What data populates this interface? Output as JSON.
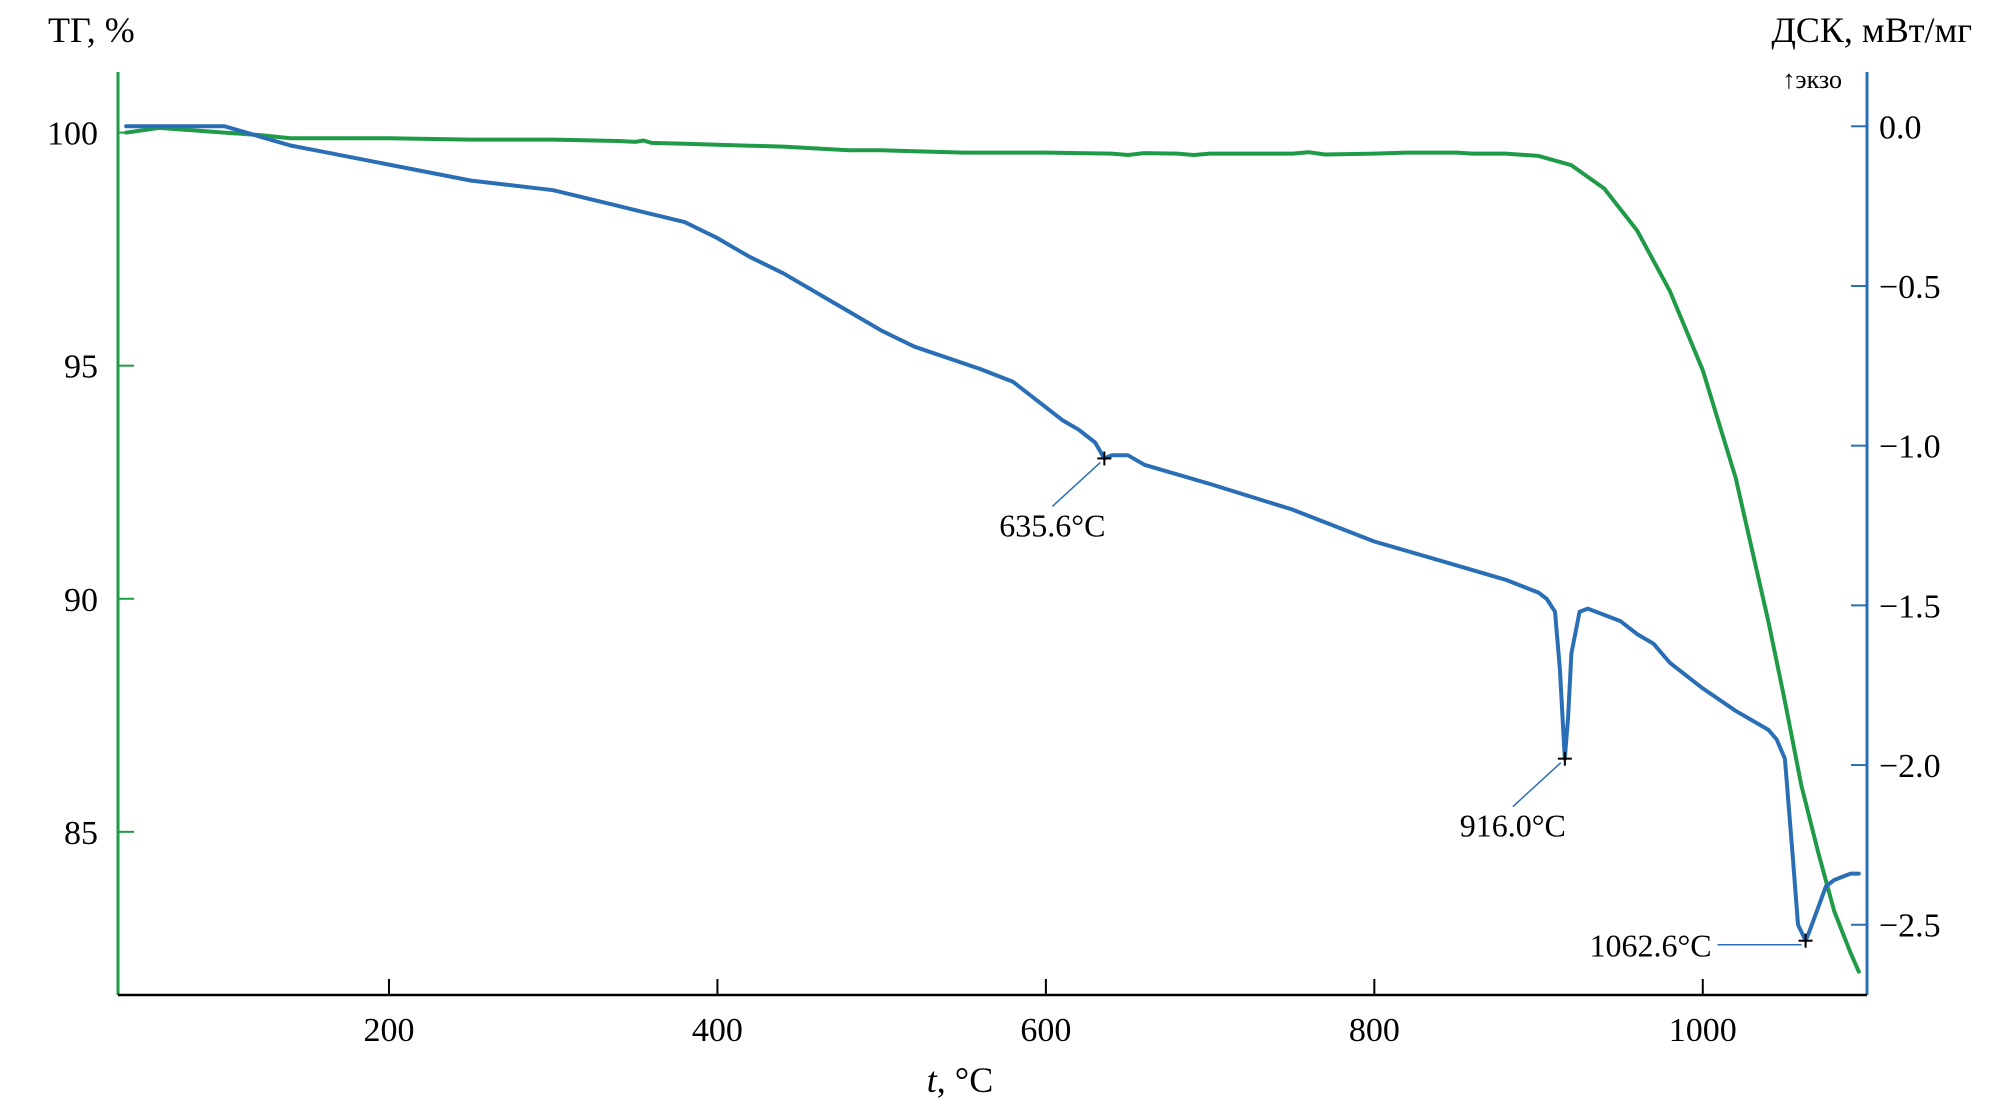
{
  "chart_data": {
    "type": "line",
    "xlabel_italic": "t",
    "xlabel_rest": ", °C",
    "ylabel_left": "ТГ, %",
    "ylabel_right": "ДСК, мВт/мг",
    "right_axis_note": "↑экзо",
    "xlim": [
      35,
      1100
    ],
    "ylim_left": [
      81.5,
      101.3
    ],
    "ylim_right": [
      -2.72,
      0.17
    ],
    "x_ticks": [
      200,
      400,
      600,
      800,
      1000
    ],
    "x_tick_labels": [
      "200",
      "400",
      "600",
      "800",
      "1000"
    ],
    "y_left_ticks": [
      100,
      95,
      90,
      85
    ],
    "y_left_tick_labels": [
      "100",
      "95",
      "90",
      "85"
    ],
    "y_right_ticks": [
      0.0,
      -0.5,
      -1.0,
      -1.5,
      -2.0,
      -2.5
    ],
    "y_right_tick_labels": [
      "0.0",
      "−0.5",
      "−1.0",
      "−1.5",
      "−2.0",
      "−2.5"
    ],
    "grid": false,
    "series": [
      {
        "axis": "left",
        "color": "#1f9b48",
        "x": [
          40,
          60,
          80,
          100,
          120,
          140,
          160,
          200,
          250,
          300,
          340,
          350,
          355,
          360,
          380,
          400,
          420,
          440,
          480,
          500,
          520,
          550,
          600,
          640,
          650,
          660,
          680,
          690,
          700,
          750,
          760,
          770,
          800,
          820,
          850,
          860,
          880,
          900,
          920,
          940,
          960,
          980,
          1000,
          1020,
          1040,
          1050,
          1060,
          1070,
          1080,
          1090,
          1095
        ],
        "y": [
          100.0,
          100.1,
          100.05,
          100.0,
          99.95,
          99.88,
          99.88,
          99.88,
          99.85,
          99.85,
          99.82,
          99.8,
          99.83,
          99.78,
          99.76,
          99.74,
          99.72,
          99.7,
          99.62,
          99.62,
          99.6,
          99.57,
          99.57,
          99.55,
          99.52,
          99.56,
          99.55,
          99.52,
          99.55,
          99.55,
          99.58,
          99.53,
          99.55,
          99.57,
          99.57,
          99.55,
          99.55,
          99.5,
          99.3,
          98.8,
          97.9,
          96.6,
          94.9,
          92.6,
          89.5,
          87.8,
          86.0,
          84.6,
          83.3,
          82.4,
          82.0
        ]
      },
      {
        "axis": "right",
        "color": "#2a6fb6",
        "x": [
          40,
          60,
          80,
          100,
          120,
          140,
          160,
          200,
          250,
          300,
          340,
          380,
          400,
          410,
          420,
          440,
          460,
          480,
          500,
          520,
          560,
          580,
          600,
          610,
          620,
          630,
          635.6,
          640,
          650,
          660,
          700,
          750,
          800,
          840,
          860,
          880,
          900,
          905,
          910,
          913,
          916,
          918,
          920,
          925,
          930,
          940,
          950,
          960,
          970,
          980,
          1000,
          1020,
          1040,
          1045,
          1050,
          1055,
          1058,
          1062.6,
          1065,
          1070,
          1075,
          1080,
          1090,
          1095
        ],
        "y": [
          0.0,
          0.0,
          0.0,
          0.0,
          -0.03,
          -0.06,
          -0.08,
          -0.12,
          -0.17,
          -0.2,
          -0.25,
          -0.3,
          -0.35,
          -0.38,
          -0.41,
          -0.46,
          -0.52,
          -0.58,
          -0.64,
          -0.69,
          -0.76,
          -0.8,
          -0.88,
          -0.92,
          -0.95,
          -0.99,
          -1.04,
          -1.03,
          -1.03,
          -1.06,
          -1.12,
          -1.2,
          -1.3,
          -1.36,
          -1.39,
          -1.42,
          -1.46,
          -1.48,
          -1.52,
          -1.7,
          -1.98,
          -1.85,
          -1.65,
          -1.52,
          -1.51,
          -1.53,
          -1.55,
          -1.59,
          -1.62,
          -1.68,
          -1.76,
          -1.83,
          -1.89,
          -1.92,
          -1.98,
          -2.3,
          -2.5,
          -2.55,
          -2.52,
          -2.45,
          -2.38,
          -2.36,
          -2.34,
          -2.34
        ]
      }
    ],
    "markers": [
      {
        "x": 635.6,
        "y": -1.04,
        "label": "635.6°C"
      },
      {
        "x": 916.0,
        "y": -1.98,
        "label": "916.0°C"
      },
      {
        "x": 1062.6,
        "y": -2.55,
        "label": "1062.6°C"
      }
    ]
  }
}
